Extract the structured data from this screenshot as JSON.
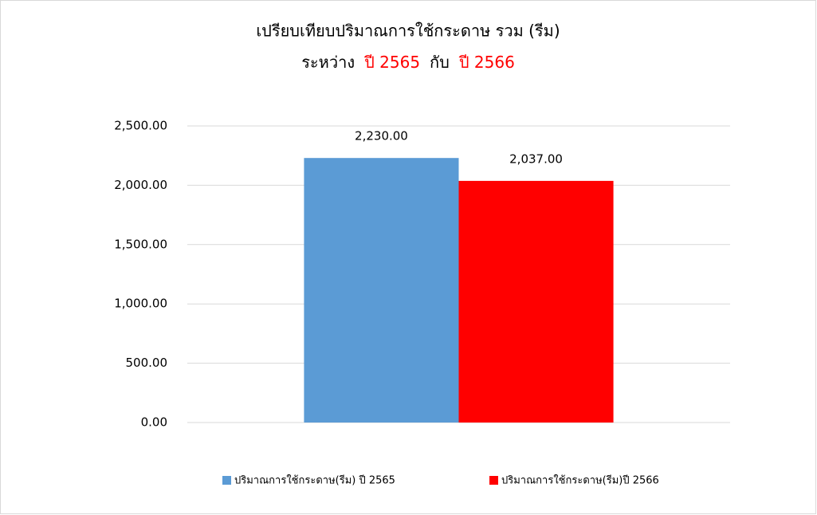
{
  "chart_data": {
    "type": "bar",
    "title": "เปรียบเทียบปริมาณการใช้กระดาษ  รวม  (รีม)",
    "subtitle_parts": [
      {
        "text": "ระหว่าง",
        "color": "#000000"
      },
      {
        "text": "ปี  2565",
        "color": "#ff0000"
      },
      {
        "text": "กับ",
        "color": "#000000"
      },
      {
        "text": "ปี  2566",
        "color": "#ff0000"
      }
    ],
    "categories": [
      null
    ],
    "series": [
      {
        "name": "ปริมาณการใช้กระดาษ(รีม)  ปี  2565",
        "color": "#5b9bd5",
        "values": [
          2230
        ],
        "value_labels": [
          "2,230.00"
        ]
      },
      {
        "name": "ปริมาณการใช้กระดาษ(รีม)ปี  2566",
        "color": "#ff0000",
        "values": [
          2037
        ],
        "value_labels": [
          "2,037.00"
        ]
      }
    ],
    "ylim": [
      0,
      2500
    ],
    "yticks": [
      {
        "value": 0,
        "label": "0.00"
      },
      {
        "value": 500,
        "label": "500.00"
      },
      {
        "value": 1000,
        "label": "1,000.00"
      },
      {
        "value": 1500,
        "label": "1,500.00"
      },
      {
        "value": 2000,
        "label": "2,000.00"
      },
      {
        "value": 2500,
        "label": "2,500.00"
      }
    ],
    "grid": true,
    "legend": "bottom"
  }
}
